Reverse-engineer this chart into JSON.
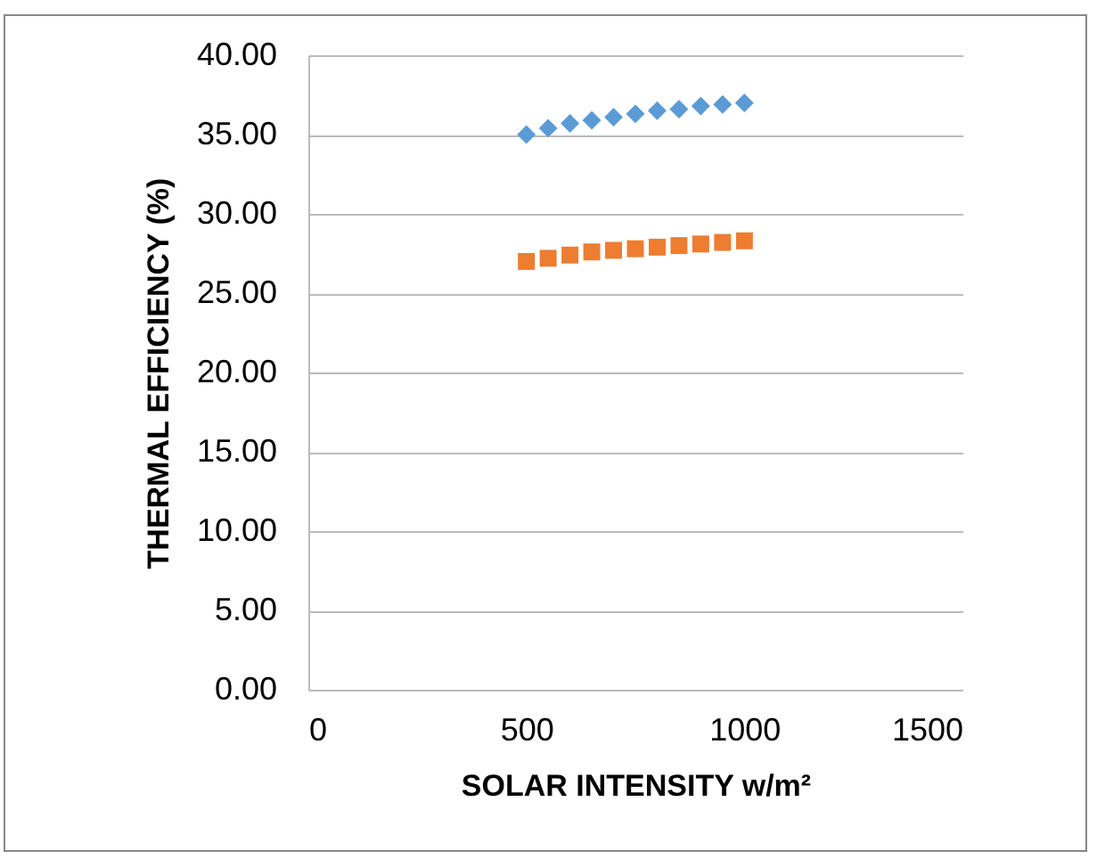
{
  "chart_data": {
    "type": "scatter",
    "xlabel": "SOLAR INTENSITY w/m²",
    "ylabel": "THERMAL EFFICIENCY (%)",
    "x": [
      500,
      550,
      600,
      650,
      700,
      750,
      800,
      850,
      900,
      950,
      1000
    ],
    "series": [
      {
        "color": "#5b9bd5",
        "marker": "diamond",
        "values": [
          35.0,
          35.4,
          35.7,
          35.9,
          36.1,
          36.3,
          36.5,
          36.6,
          36.8,
          36.9,
          37.0
        ]
      },
      {
        "color": "#ed7d31",
        "marker": "square",
        "values": [
          27.0,
          27.2,
          27.4,
          27.6,
          27.7,
          27.8,
          27.9,
          28.0,
          28.1,
          28.2,
          28.3
        ]
      }
    ],
    "xlim": [
      0,
      1500
    ],
    "xticks": [
      0,
      500,
      1000,
      1500
    ],
    "ylim": [
      0,
      40
    ],
    "yticks": [
      {
        "value": 0,
        "label": "0.00"
      },
      {
        "value": 5,
        "label": "5.00"
      },
      {
        "value": 10,
        "label": "10.00"
      },
      {
        "value": 15,
        "label": "15.00"
      },
      {
        "value": 20,
        "label": "20.00"
      },
      {
        "value": 25,
        "label": "25.00"
      },
      {
        "value": 30,
        "label": "30.00"
      },
      {
        "value": 35,
        "label": "35.00"
      },
      {
        "value": 40,
        "label": "40.00"
      }
    ],
    "grid": "y"
  }
}
